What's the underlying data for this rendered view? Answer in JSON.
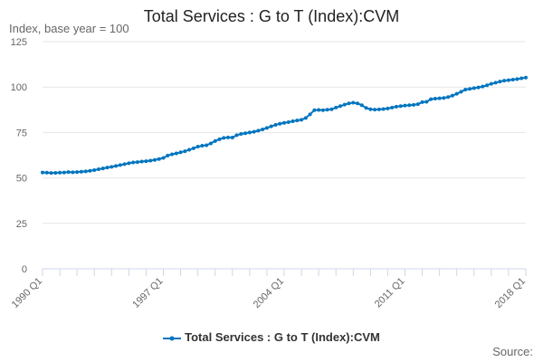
{
  "chart_data": {
    "type": "line",
    "title": "Total Services : G to T (Index):CVM",
    "ylabel": "Index, base year = 100",
    "xlabel": "",
    "source_label": "Source:",
    "ylim": [
      0,
      125
    ],
    "yticks": [
      0,
      25,
      50,
      75,
      100,
      125
    ],
    "xtick_labels": [
      "1990 Q1",
      "1997 Q1",
      "2004 Q1",
      "2011 Q1",
      "2018 Q1"
    ],
    "xtick_indices": [
      0,
      28,
      56,
      84,
      112
    ],
    "start": "1990 Q1",
    "end": "2018 Q1",
    "grid": true,
    "legend_position": "bottom",
    "color": "#0075bf",
    "series": [
      {
        "name": "Total Services : G to T (Index):CVM",
        "values": [
          53.0,
          52.9,
          52.7,
          52.8,
          52.9,
          53.0,
          53.2,
          53.1,
          53.2,
          53.4,
          53.6,
          53.9,
          54.3,
          54.8,
          55.2,
          55.7,
          56.1,
          56.6,
          57.1,
          57.6,
          58.1,
          58.5,
          58.7,
          59.0,
          59.2,
          59.5,
          59.9,
          60.4,
          61.0,
          62.3,
          63.0,
          63.5,
          64.1,
          64.7,
          65.5,
          66.3,
          67.2,
          67.7,
          68.0,
          69.0,
          70.3,
          71.3,
          72.0,
          72.3,
          72.2,
          73.5,
          74.2,
          74.6,
          75.0,
          75.4,
          76.0,
          76.7,
          77.5,
          78.4,
          79.2,
          79.8,
          80.3,
          80.7,
          81.2,
          81.6,
          82.0,
          83.0,
          85.0,
          87.3,
          87.4,
          87.3,
          87.5,
          87.8,
          88.7,
          89.5,
          90.3,
          91.0,
          91.4,
          91.0,
          90.0,
          88.5,
          87.8,
          87.6,
          87.7,
          87.9,
          88.2,
          88.7,
          89.2,
          89.5,
          89.8,
          90.0,
          90.2,
          90.6,
          91.7,
          91.9,
          93.3,
          93.6,
          93.8,
          94.0,
          94.5,
          95.3,
          96.3,
          97.4,
          98.6,
          99.0,
          99.4,
          99.8,
          100.3,
          101.0,
          101.8,
          102.4,
          103.0,
          103.5,
          103.8,
          104.1,
          104.4,
          104.8,
          105.2
        ]
      }
    ]
  }
}
